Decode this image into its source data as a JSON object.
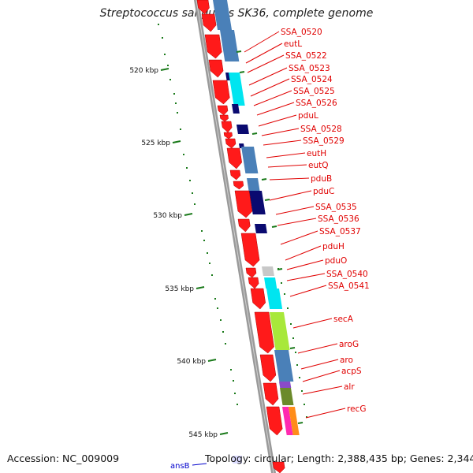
{
  "title": "Streptococcus sanguinis SK36, complete genome",
  "footer": {
    "accession": "Accession: NC_009009",
    "summary": "Topology: circular; Length: 2,388,435 bp; Genes: 2,344"
  },
  "scale": {
    "labels": [
      "520 kbp",
      "525 kbp",
      "530 kbp",
      "535 kbp",
      "540 kbp",
      "545 kbp"
    ]
  },
  "colors": {
    "cds_arrow": "#ff1a1a",
    "label": "#e00000",
    "tick": "#1a7a1a",
    "backbone": "#9a9a9a",
    "edge_label": "#0000cc"
  },
  "genes": [
    "SSA_0520",
    "eutL",
    "SSA_0522",
    "SSA_0523",
    "SSA_0524",
    "SSA_0525",
    "SSA_0526",
    "pduL",
    "SSA_0528",
    "SSA_0529",
    "eutH",
    "eutQ",
    "pduB",
    "pduC",
    "SSA_0535",
    "SSA_0536",
    "SSA_0537",
    "pduH",
    "pduO",
    "SSA_0540",
    "SSA_0541",
    "secA",
    "aroG",
    "aro",
    "acpS",
    "alr",
    "recG"
  ],
  "edge_gene": "ansB"
}
